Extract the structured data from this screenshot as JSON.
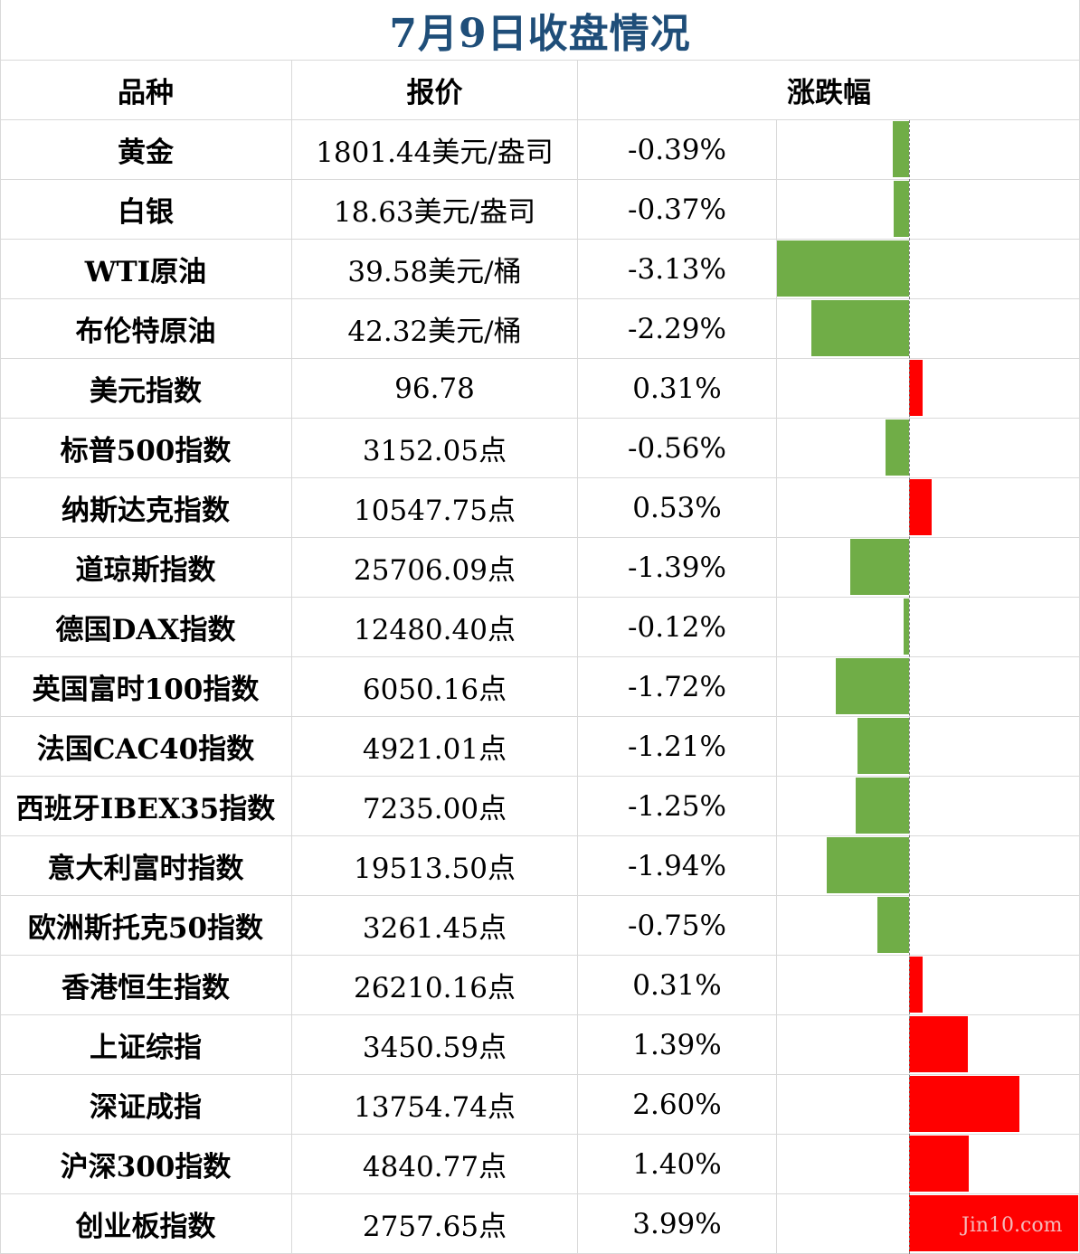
{
  "title": "7月9日收盘情况",
  "colors": {
    "title": "#1f4e79",
    "negative": "#70ad47",
    "positive": "#ff0000",
    "grid": "#d9d9d9"
  },
  "columns": {
    "name": "品种",
    "price": "报价",
    "change": "涨跌幅"
  },
  "rows": [
    {
      "name": "黄金",
      "price": "1801.44美元/盎司",
      "change": "-0.39%",
      "value": -0.39
    },
    {
      "name": "白银",
      "price": "18.63美元/盎司",
      "change": "-0.37%",
      "value": -0.37
    },
    {
      "name": "WTI原油",
      "price": "39.58美元/桶",
      "change": "-3.13%",
      "value": -3.13
    },
    {
      "name": "布伦特原油",
      "price": "42.32美元/桶",
      "change": "-2.29%",
      "value": -2.29
    },
    {
      "name": "美元指数",
      "price": "96.78",
      "change": "0.31%",
      "value": 0.31
    },
    {
      "name": "标普500指数",
      "price": "3152.05点",
      "change": "-0.56%",
      "value": -0.56
    },
    {
      "name": "纳斯达克指数",
      "price": "10547.75点",
      "change": "0.53%",
      "value": 0.53
    },
    {
      "name": "道琼斯指数",
      "price": "25706.09点",
      "change": "-1.39%",
      "value": -1.39
    },
    {
      "name": "德国DAX指数",
      "price": "12480.40点",
      "change": "-0.12%",
      "value": -0.12
    },
    {
      "name": "英国富时100指数",
      "price": "6050.16点",
      "change": "-1.72%",
      "value": -1.72
    },
    {
      "name": "法国CAC40指数",
      "price": "4921.01点",
      "change": "-1.21%",
      "value": -1.21
    },
    {
      "name": "西班牙IBEX35指数",
      "price": "7235.00点",
      "change": "-1.25%",
      "value": -1.25
    },
    {
      "name": "意大利富时指数",
      "price": "19513.50点",
      "change": "-1.94%",
      "value": -1.94
    },
    {
      "name": "欧洲斯托克50指数",
      "price": "3261.45点",
      "change": "-0.75%",
      "value": -0.75
    },
    {
      "name": "香港恒生指数",
      "price": "26210.16点",
      "change": "0.31%",
      "value": 0.31
    },
    {
      "name": "上证综指",
      "price": "3450.59点",
      "change": "1.39%",
      "value": 1.39
    },
    {
      "name": "深证成指",
      "price": "13754.74点",
      "change": "2.60%",
      "value": 2.6
    },
    {
      "name": "沪深300指数",
      "price": "4840.77点",
      "change": "1.40%",
      "value": 1.4
    },
    {
      "name": "创业板指数",
      "price": "2757.65点",
      "change": "3.99%",
      "value": 3.99
    }
  ],
  "watermark": "Jin10.com"
}
